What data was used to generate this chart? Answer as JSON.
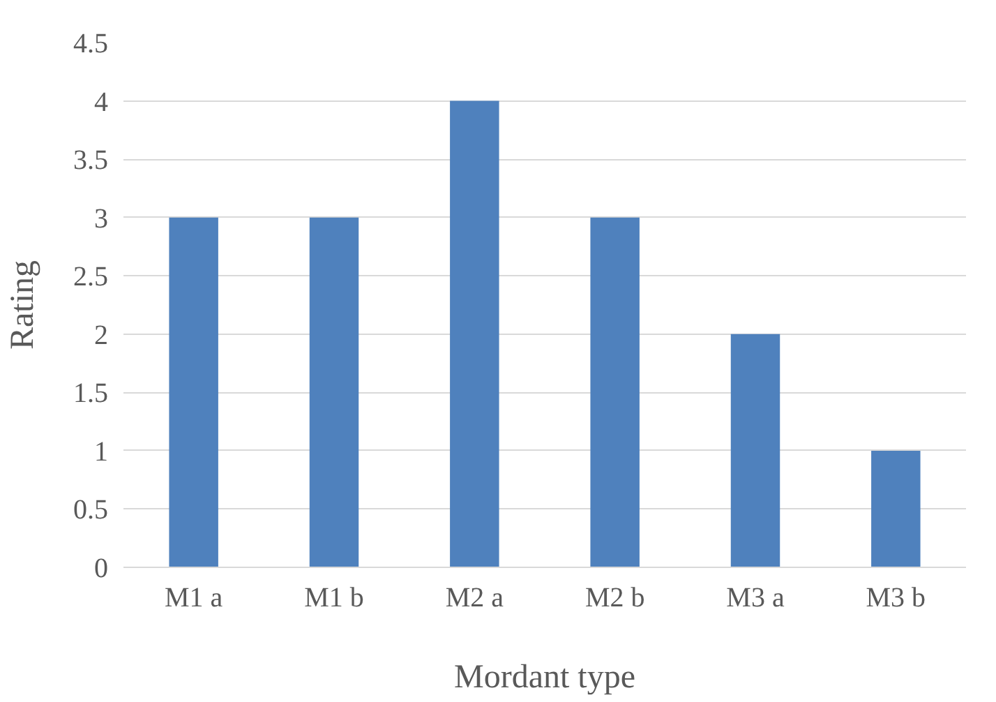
{
  "chart_data": {
    "type": "bar",
    "xlabel": "Mordant type",
    "ylabel": "Rating",
    "categories": [
      "M1 a",
      "M1 b",
      "M2 a",
      "M2 b",
      "M3 a",
      "M3 b"
    ],
    "values": [
      3,
      3,
      4,
      3,
      2,
      1
    ],
    "color": "#4f81bd",
    "ylim": [
      0,
      4.5
    ],
    "yticks": [
      0,
      0.5,
      1,
      1.5,
      2,
      2.5,
      3,
      3.5,
      4,
      4.5
    ],
    "grid": "y"
  }
}
